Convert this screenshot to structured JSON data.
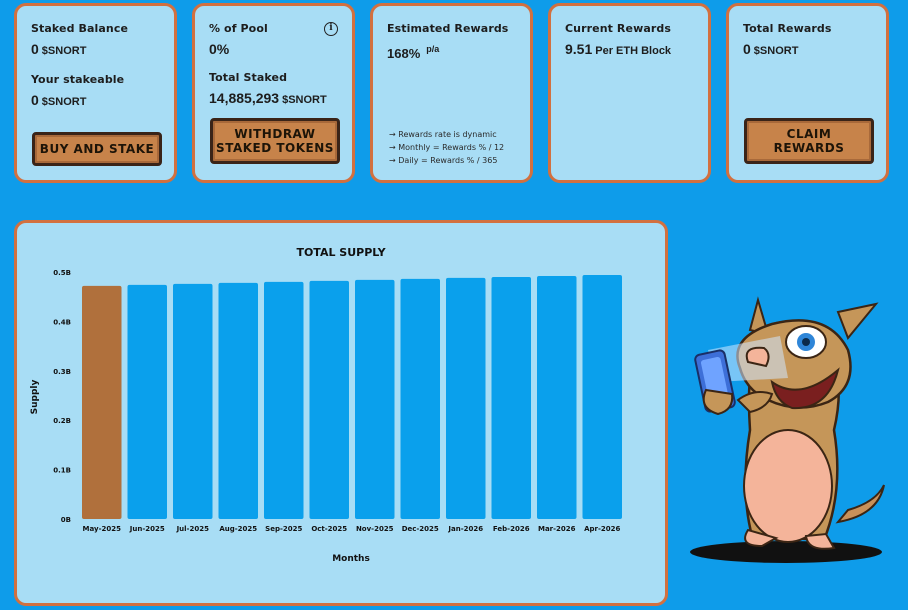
{
  "cards": {
    "staked": {
      "label": "Staked Balance",
      "value": "0",
      "unit": "$SNORT",
      "label2": "Your stakeable",
      "value2": "0",
      "unit2": "$SNORT",
      "button": "BUY AND STAKE"
    },
    "pool": {
      "label": "% of Pool",
      "value": "0%",
      "label2": "Total Staked",
      "value2": "14,885,293",
      "unit2": "$SNORT",
      "button_line1": "WITHDRAW",
      "button_line2": "STAKED TOKENS",
      "info_icon": "info-icon"
    },
    "estimated": {
      "label": "Estimated Rewards",
      "value": "168%",
      "suffix": "p/a",
      "notes": [
        "→ Rewards rate is dynamic",
        "→ Monthly = Rewards % / 12",
        "→ Daily = Rewards % / 365"
      ]
    },
    "current": {
      "label": "Current Rewards",
      "value": "9.51",
      "unit": "Per ETH Block"
    },
    "total": {
      "label": "Total Rewards",
      "value": "0",
      "unit": "$SNORT",
      "button_line1": "CLAIM",
      "button_line2": "REWARDS"
    }
  },
  "colors": {
    "background": "#0e9cea",
    "card": "#a8ddf5",
    "card_border": "#d2703f",
    "bar": "#0aa0ec",
    "bar_highlight": "#b0703c",
    "button": "#c7834a"
  },
  "chart_data": {
    "type": "bar",
    "title": "TOTAL SUPPLY",
    "xlabel": "Months",
    "ylabel": "Supply",
    "categories": [
      "May-2025",
      "Jun-2025",
      "Jul-2025",
      "Aug-2025",
      "Sep-2025",
      "Oct-2025",
      "Nov-2025",
      "Dec-2025",
      "Jan-2026",
      "Feb-2026",
      "Mar-2026",
      "Apr-2026"
    ],
    "values": [
      0.472,
      0.474,
      0.476,
      0.478,
      0.48,
      0.482,
      0.484,
      0.486,
      0.488,
      0.49,
      0.492,
      0.494
    ],
    "value_unit": "B",
    "highlighted_index": 0,
    "ylim": [
      0,
      0.5
    ],
    "yticks": [
      0,
      0.1,
      0.2,
      0.3,
      0.4,
      0.5
    ],
    "ytick_labels": [
      "0B",
      "0.1B",
      "0.2B",
      "0.3B",
      "0.4B",
      "0.5B"
    ],
    "grid": false
  }
}
